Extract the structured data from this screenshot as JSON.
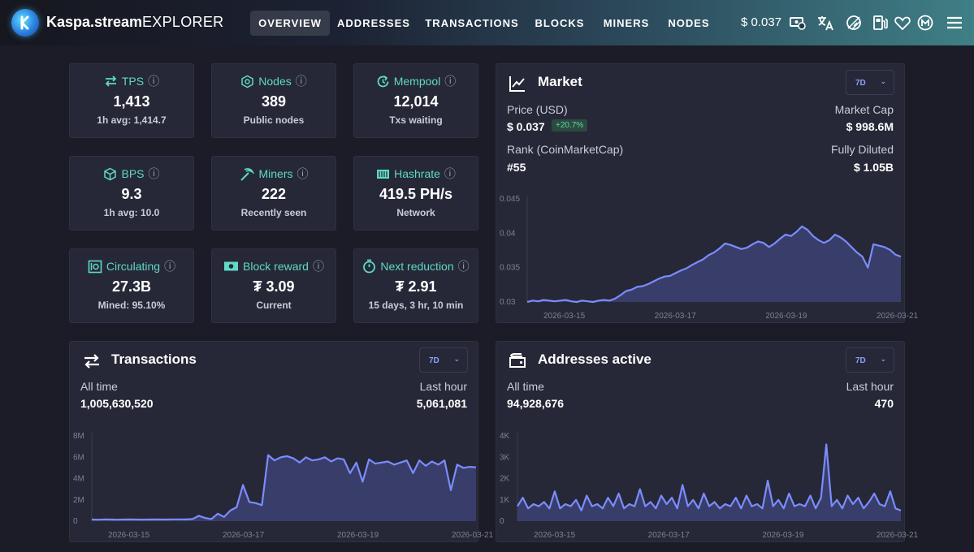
{
  "header": {
    "brand": "Kaspa.stream",
    "brand_sub": "EXPLORER",
    "nav": [
      "OVERVIEW",
      "ADDRESSES",
      "TRANSACTIONS",
      "BLOCKS",
      "MINERS",
      "NODES"
    ],
    "price": "$ 0.037",
    "icons": [
      "currency-icon",
      "translate-icon",
      "theme-toggle-icon",
      "fuel-icon",
      "heart-icon",
      "m-icon",
      "menu-icon"
    ]
  },
  "stats": {
    "tps": {
      "title": "TPS",
      "value": "1,413",
      "sub": "1h avg: 1,414.7"
    },
    "nodes": {
      "title": "Nodes",
      "value": "389",
      "sub": "Public nodes"
    },
    "mempool": {
      "title": "Mempool",
      "value": "12,014",
      "sub": "Txs waiting"
    },
    "bps": {
      "title": "BPS",
      "value": "9.3",
      "sub": "1h avg: 10.0"
    },
    "miners": {
      "title": "Miners",
      "value": "222",
      "sub": "Recently seen"
    },
    "hashrate": {
      "title": "Hashrate",
      "value": "419.5 PH/s",
      "sub": "Network"
    },
    "circulating": {
      "title": "Circulating",
      "value": "27.3B",
      "sub": "Mined: 95.10%"
    },
    "block_reward": {
      "title": "Block reward",
      "value": "₮ 3.09",
      "sub": "Current"
    },
    "next_reduction": {
      "title": "Next reduction",
      "value": "₮ 2.91",
      "sub": "15 days, 3 hr, 10 min"
    }
  },
  "market": {
    "title": "Market",
    "range": "7D",
    "price_label": "Price (USD)",
    "price_value": "$ 0.037",
    "change": "+20.7%",
    "mcap_label": "Market Cap",
    "mcap_value": "$ 998.6M",
    "rank_label": "Rank (CoinMarketCap)",
    "rank_value": "#55",
    "diluted_label": "Fully Diluted",
    "diluted_value": "$ 1.05B"
  },
  "transactions": {
    "title": "Transactions",
    "range": "7D",
    "all_label": "All time",
    "all_value": "1,005,630,520",
    "hour_label": "Last hour",
    "hour_value": "5,061,081"
  },
  "addresses": {
    "title": "Addresses active",
    "range": "7D",
    "all_label": "All time",
    "all_value": "94,928,676",
    "hour_label": "Last hour",
    "hour_value": "470"
  },
  "colors": {
    "accent": "#5fd9c6",
    "line": "#7b8cff",
    "fill": "#3c4272"
  },
  "chart_data": [
    {
      "type": "area",
      "title": "Market",
      "ylim": [
        0.03,
        0.045
      ],
      "yticks": [
        "0.03",
        "0.035",
        "0.04",
        "0.045"
      ],
      "xticks": [
        "2026-03-15",
        "2026-03-17",
        "2026-03-19",
        "2026-03-21"
      ],
      "values": [
        0.03,
        0.0302,
        0.0301,
        0.0303,
        0.0302,
        0.0301,
        0.0302,
        0.0303,
        0.0301,
        0.03,
        0.0302,
        0.0301,
        0.03,
        0.0302,
        0.0303,
        0.0302,
        0.0305,
        0.031,
        0.0316,
        0.0318,
        0.0322,
        0.0323,
        0.0326,
        0.033,
        0.0334,
        0.0337,
        0.0338,
        0.0342,
        0.0346,
        0.0349,
        0.0354,
        0.0358,
        0.0362,
        0.0368,
        0.0372,
        0.0378,
        0.0385,
        0.0383,
        0.038,
        0.0377,
        0.0379,
        0.0384,
        0.0388,
        0.0386,
        0.038,
        0.0385,
        0.0392,
        0.0398,
        0.0396,
        0.0402,
        0.041,
        0.0405,
        0.0396,
        0.039,
        0.0386,
        0.039,
        0.0398,
        0.0394,
        0.0388,
        0.038,
        0.0372,
        0.0366,
        0.035,
        0.0384,
        0.0382,
        0.038,
        0.0376,
        0.0369,
        0.0366
      ]
    },
    {
      "type": "area",
      "title": "Transactions",
      "ylim": [
        0,
        8000000
      ],
      "yticks": [
        "0",
        "2M",
        "4M",
        "6M",
        "8M"
      ],
      "xticks": [
        "2026-03-15",
        "2026-03-17",
        "2026-03-19",
        "2026-03-21"
      ],
      "values": [
        150000,
        140000,
        160000,
        150000,
        140000,
        155000,
        160000,
        150000,
        145000,
        155000,
        160000,
        150000,
        155000,
        165000,
        170000,
        160000,
        200000,
        500000,
        300000,
        200000,
        700000,
        400000,
        1000000,
        1300000,
        3400000,
        1800000,
        1700000,
        1500000,
        6200000,
        5700000,
        6000000,
        6100000,
        5900000,
        5500000,
        6000000,
        5700000,
        5800000,
        6000000,
        5600000,
        5900000,
        5800000,
        4500000,
        5500000,
        3700000,
        5800000,
        5400000,
        5500000,
        5600000,
        5300000,
        5500000,
        5700000,
        4500000,
        5700000,
        5200000,
        5600000,
        5300000,
        5700000,
        2900000,
        5300000,
        5000000,
        5100000,
        5050000
      ]
    },
    {
      "type": "area",
      "title": "Addresses active",
      "ylim": [
        0,
        4000
      ],
      "yticks": [
        "0",
        "1K",
        "2K",
        "3K",
        "4K"
      ],
      "xticks": [
        "2026-03-15",
        "2026-03-17",
        "2026-03-19",
        "2026-03-21"
      ],
      "values": [
        700,
        1100,
        600,
        800,
        700,
        900,
        600,
        1400,
        600,
        800,
        700,
        1000,
        500,
        1200,
        700,
        800,
        600,
        1100,
        700,
        1300,
        600,
        800,
        700,
        1500,
        700,
        900,
        600,
        1200,
        800,
        1100,
        600,
        1700,
        700,
        1000,
        600,
        1300,
        700,
        900,
        600,
        800,
        700,
        1100,
        600,
        1200,
        700,
        800,
        600,
        1900,
        700,
        1000,
        600,
        1300,
        700,
        800,
        700,
        1200,
        600,
        1100,
        3600,
        700,
        1000,
        600,
        1200,
        800,
        1100,
        600,
        900,
        1300,
        800,
        700,
        1400,
        600,
        500
      ]
    }
  ]
}
